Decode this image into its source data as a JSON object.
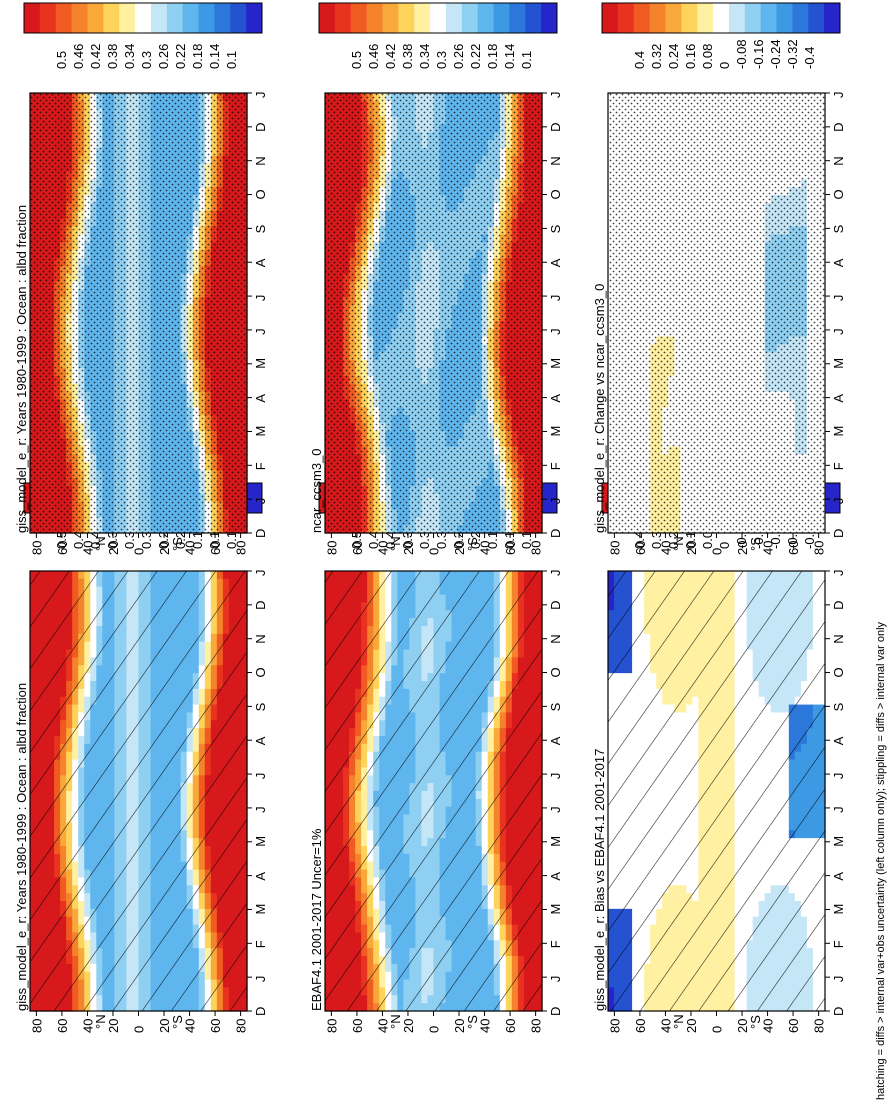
{
  "figure": {
    "footnote": "hatching = diffs > internal var+obs uncertainty (left column only); stippling = diffs > internal var only"
  },
  "chart_data": [
    {
      "type": "heatmap",
      "title": "giss_model_e_r: Years 1980-1999 : Ocean : albd fraction",
      "x_ticks": [
        "D",
        "J",
        "F",
        "M",
        "A",
        "M",
        "J",
        "J",
        "A",
        "S",
        "O",
        "N",
        "D",
        "J"
      ],
      "y_ticks": [
        "80",
        "60",
        "40",
        "20",
        "0",
        "20",
        "40",
        "60",
        "80"
      ],
      "y_hemisphere_labels": [
        "°N",
        "°S"
      ],
      "colorbar_ticks": [
        "0.5",
        "0.46",
        "0.42",
        "0.38",
        "0.34",
        "0.3",
        "0.26",
        "0.22",
        "0.18",
        "0.14",
        "0.1"
      ],
      "colorbar_range": [
        0.08,
        0.52
      ],
      "overlay": "hatching",
      "panel_position": "top-left",
      "field": "albedo_base"
    },
    {
      "type": "heatmap",
      "title": "EBAF4.1 2001-2017 Uncer=1%",
      "x_ticks": [
        "D",
        "J",
        "F",
        "M",
        "A",
        "M",
        "J",
        "J",
        "A",
        "S",
        "O",
        "N",
        "D",
        "J"
      ],
      "y_ticks": [
        "80",
        "60",
        "40",
        "20",
        "0",
        "20",
        "40",
        "60",
        "80"
      ],
      "y_hemisphere_labels": [
        "°N",
        "°S"
      ],
      "colorbar_ticks": [
        "0.5",
        "0.46",
        "0.42",
        "0.38",
        "0.34",
        "0.3",
        "0.26",
        "0.22",
        "0.18",
        "0.14",
        "0.1"
      ],
      "colorbar_range": [
        0.08,
        0.52
      ],
      "overlay": "hatching",
      "panel_position": "middle-left",
      "field": "albedo_obs"
    },
    {
      "type": "heatmap",
      "title": "giss_model_e_r: Bias vs EBAF4.1 2001-2017",
      "x_ticks": [
        "D",
        "J",
        "F",
        "M",
        "A",
        "M",
        "J",
        "J",
        "A",
        "S",
        "O",
        "N",
        "D",
        "J"
      ],
      "y_ticks": [
        "80",
        "60",
        "40",
        "20",
        "0",
        "20",
        "40",
        "60",
        "80"
      ],
      "y_hemisphere_labels": [
        "°N",
        "°S"
      ],
      "colorbar_ticks": [
        "0.4",
        "0.32",
        "0.24",
        "0.16",
        "0.08",
        "0",
        "-0.08",
        "-0.16",
        "-0.24",
        "-0.32",
        "-0.4"
      ],
      "colorbar_range": [
        -0.44,
        0.44
      ],
      "overlay": "hatching",
      "panel_position": "bottom-left",
      "field": "bias"
    },
    {
      "type": "heatmap",
      "title": "giss_model_e_r: Years 1980-1999 : Ocean : albd fraction",
      "x_ticks": [
        "D",
        "J",
        "F",
        "M",
        "A",
        "M",
        "J",
        "J",
        "A",
        "S",
        "O",
        "N",
        "D",
        "J"
      ],
      "y_ticks": [
        "80",
        "60",
        "40",
        "20",
        "0",
        "20",
        "40",
        "60",
        "80"
      ],
      "y_hemisphere_labels": [
        "°N",
        "°S"
      ],
      "colorbar_ticks": [
        "0.5",
        "0.46",
        "0.42",
        "0.38",
        "0.34",
        "0.3",
        "0.26",
        "0.22",
        "0.18",
        "0.14",
        "0.1"
      ],
      "colorbar_range": [
        0.08,
        0.52
      ],
      "overlay": "stippling",
      "panel_position": "top-right",
      "field": "albedo_base"
    },
    {
      "type": "heatmap",
      "title": "ncar_ccsm3_0",
      "x_ticks": [
        "D",
        "J",
        "F",
        "M",
        "A",
        "M",
        "J",
        "J",
        "A",
        "S",
        "O",
        "N",
        "D",
        "J"
      ],
      "y_ticks": [
        "80",
        "60",
        "40",
        "20",
        "0",
        "20",
        "40",
        "60",
        "80"
      ],
      "y_hemisphere_labels": [
        "°N",
        "°S"
      ],
      "colorbar_ticks": [
        "0.5",
        "0.46",
        "0.42",
        "0.38",
        "0.34",
        "0.3",
        "0.26",
        "0.22",
        "0.18",
        "0.14",
        "0.1"
      ],
      "colorbar_range": [
        0.08,
        0.52
      ],
      "overlay": "stippling",
      "panel_position": "middle-right",
      "field": "albedo_alt"
    },
    {
      "type": "heatmap",
      "title": "giss_model_e_r: Change vs ncar_ccsm3_0",
      "x_ticks": [
        "D",
        "J",
        "F",
        "M",
        "A",
        "M",
        "J",
        "J",
        "A",
        "S",
        "O",
        "N",
        "D",
        "J"
      ],
      "y_ticks": [
        "80",
        "60",
        "40",
        "20",
        "0",
        "20",
        "40",
        "60",
        "80"
      ],
      "y_hemisphere_labels": [
        "°N",
        "°S"
      ],
      "colorbar_ticks": [
        "0.4",
        "0.32",
        "0.24",
        "0.16",
        "0.08",
        "0",
        "-0.08",
        "-0.16",
        "-0.24",
        "-0.32",
        "-0.4"
      ],
      "colorbar_range": [
        -0.44,
        0.44
      ],
      "overlay": "stippling",
      "panel_position": "bottom-right",
      "field": "change"
    }
  ]
}
